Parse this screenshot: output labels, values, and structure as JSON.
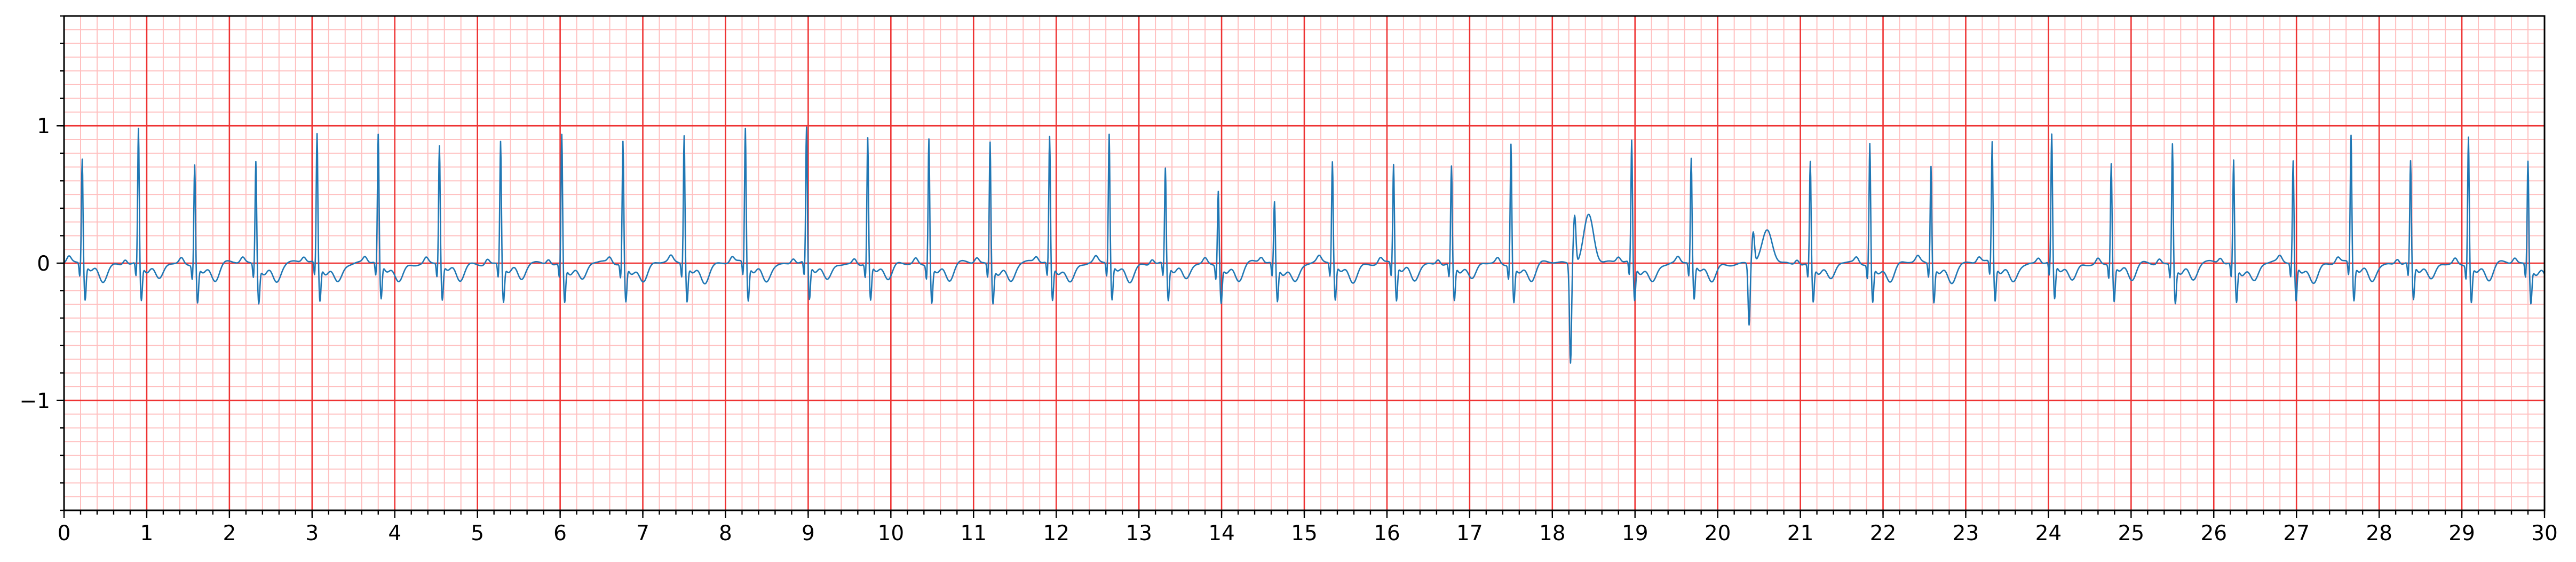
{
  "chart_data": {
    "type": "line",
    "title": "",
    "xlabel": "",
    "ylabel": "",
    "xlim": [
      0,
      30
    ],
    "ylim": [
      -1.8,
      1.8
    ],
    "x_ticks": [
      0,
      1,
      2,
      3,
      4,
      5,
      6,
      7,
      8,
      9,
      10,
      11,
      12,
      13,
      14,
      15,
      16,
      17,
      18,
      19,
      20,
      21,
      22,
      23,
      24,
      25,
      26,
      27,
      28,
      29,
      30
    ],
    "x_tick_labels": [
      "0",
      "1",
      "2",
      "3",
      "4",
      "5",
      "6",
      "7",
      "8",
      "9",
      "10",
      "11",
      "12",
      "13",
      "14",
      "15",
      "16",
      "17",
      "18",
      "19",
      "20",
      "21",
      "22",
      "23",
      "24",
      "25",
      "26",
      "27",
      "28",
      "29",
      "30"
    ],
    "y_ticks": [
      -1,
      0,
      1
    ],
    "y_tick_labels": [
      "−1",
      "0",
      "1"
    ],
    "grid": {
      "major": true,
      "minor": true,
      "major_color": "#ee3333",
      "minor_color": "#ffc0c0",
      "x_major_step": 1,
      "x_minor_step": 0.2,
      "y_major_step": 1,
      "y_minor_step": 0.1
    },
    "series": [
      {
        "color": "#1f77b4",
        "beats": [
          {
            "t": 0.22,
            "r": 0.76
          },
          {
            "t": 0.9,
            "r": 0.98
          },
          {
            "t": 1.58,
            "r": 0.74
          },
          {
            "t": 2.32,
            "r": 0.76
          },
          {
            "t": 3.06,
            "r": 0.94
          },
          {
            "t": 3.8,
            "r": 0.93
          },
          {
            "t": 4.54,
            "r": 0.86
          },
          {
            "t": 5.28,
            "r": 0.9
          },
          {
            "t": 6.02,
            "r": 0.95
          },
          {
            "t": 6.76,
            "r": 0.9
          },
          {
            "t": 7.5,
            "r": 0.94
          },
          {
            "t": 8.24,
            "r": 0.98
          },
          {
            "t": 8.98,
            "r": 0.98
          },
          {
            "t": 9.72,
            "r": 0.92
          },
          {
            "t": 10.46,
            "r": 0.93
          },
          {
            "t": 11.2,
            "r": 0.9
          },
          {
            "t": 11.92,
            "r": 0.92
          },
          {
            "t": 12.64,
            "r": 0.94
          },
          {
            "t": 13.32,
            "r": 0.69
          },
          {
            "t": 13.96,
            "r": 0.55
          },
          {
            "t": 14.64,
            "r": 0.45
          },
          {
            "t": 15.34,
            "r": 0.74
          },
          {
            "t": 16.08,
            "r": 0.72
          },
          {
            "t": 16.78,
            "r": 0.71
          },
          {
            "t": 17.5,
            "r": 0.89
          },
          {
            "t": 18.24,
            "r": -0.72,
            "note": "ectopic"
          },
          {
            "t": 18.96,
            "r": 0.89
          },
          {
            "t": 19.68,
            "r": 0.76
          },
          {
            "t": 20.4,
            "r": -0.45,
            "note": "ectopic"
          },
          {
            "t": 21.12,
            "r": 0.75
          },
          {
            "t": 21.84,
            "r": 0.89
          },
          {
            "t": 22.58,
            "r": 0.72
          },
          {
            "t": 23.32,
            "r": 0.88
          },
          {
            "t": 24.04,
            "r": 0.93
          },
          {
            "t": 24.76,
            "r": 0.74
          },
          {
            "t": 25.5,
            "r": 0.89
          },
          {
            "t": 26.24,
            "r": 0.76
          },
          {
            "t": 26.96,
            "r": 0.75
          },
          {
            "t": 27.66,
            "r": 0.93
          },
          {
            "t": 28.38,
            "r": 0.74
          },
          {
            "t": 29.08,
            "r": 0.94
          },
          {
            "t": 29.8,
            "r": 0.76
          }
        ]
      }
    ]
  }
}
